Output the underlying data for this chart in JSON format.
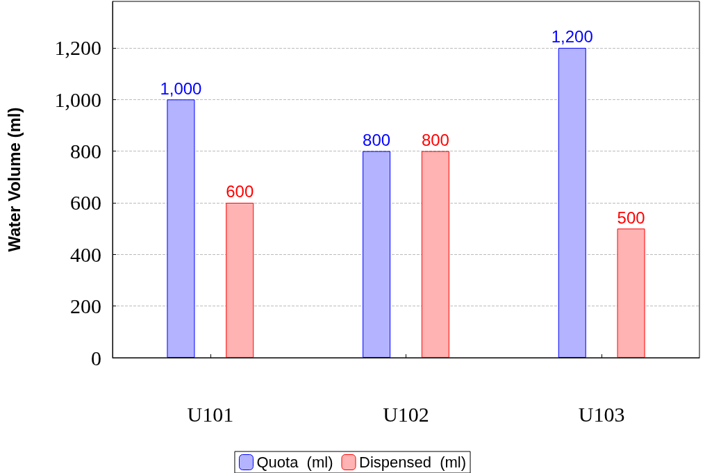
{
  "chart_data": {
    "type": "bar",
    "ylabel": "Water Volume (ml)",
    "categories": [
      "U101",
      "U102",
      "U103"
    ],
    "series": [
      {
        "name": "Quota  (ml)",
        "color": "#b3b3ff",
        "values": [
          1000,
          800,
          1200
        ],
        "value_labels": [
          "1,000",
          "800",
          "1,200"
        ]
      },
      {
        "name": "Dispensed  (ml)",
        "color": "#ffb3b3",
        "values": [
          600,
          800,
          500
        ],
        "value_labels": [
          "600",
          "800",
          "500"
        ]
      }
    ],
    "ylim": [
      0,
      1380
    ],
    "yticks": [
      0,
      200,
      400,
      600,
      800,
      {
        "value": 1000,
        "label": "1,000"
      },
      {
        "value": 1200,
        "label": "1,200"
      }
    ],
    "grid": "y",
    "legend": "bottom"
  }
}
